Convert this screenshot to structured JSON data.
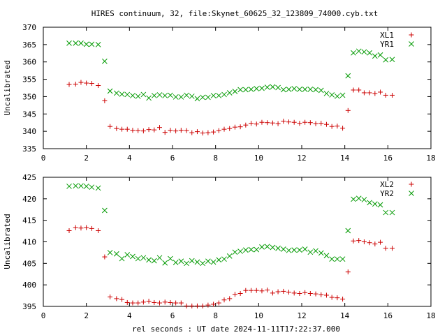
{
  "title": "HIRES continuum, 32, file:Skynet_60625_32_123809_74000.cyb.txt",
  "xlabel": "rel seconds : UT date 2024-11-11T17:22:37.000",
  "colors": {
    "xl": "#cc0000",
    "yr": "#009900",
    "axis": "#000000"
  },
  "chart_data": [
    {
      "type": "scatter",
      "ylabel": "Uncalibrated",
      "xlim": [
        0,
        18
      ],
      "ylim": [
        335,
        370
      ],
      "xticks": [
        0,
        2,
        4,
        6,
        8,
        10,
        12,
        14,
        16,
        18
      ],
      "yticks": [
        335,
        340,
        345,
        350,
        355,
        360,
        365,
        370
      ],
      "legend_position": "top-right",
      "series": [
        {
          "name": "XL1",
          "marker": "plus",
          "color": "#cc0000",
          "x": [
            1.2,
            1.5,
            1.75,
            2.0,
            2.25,
            2.55,
            2.85,
            3.1,
            3.4,
            3.65,
            3.9,
            4.15,
            4.4,
            4.65,
            4.9,
            5.15,
            5.4,
            5.65,
            5.9,
            6.15,
            6.4,
            6.65,
            6.9,
            7.15,
            7.4,
            7.65,
            7.9,
            8.15,
            8.4,
            8.65,
            8.9,
            9.15,
            9.4,
            9.65,
            9.9,
            10.15,
            10.4,
            10.65,
            10.9,
            11.15,
            11.4,
            11.65,
            11.9,
            12.15,
            12.4,
            12.65,
            12.9,
            13.15,
            13.4,
            13.65,
            13.9,
            14.15,
            14.4,
            14.65,
            14.9,
            15.15,
            15.4,
            15.65,
            15.9,
            16.2
          ],
          "y": [
            353.5,
            353.6,
            354.1,
            353.9,
            353.8,
            353.2,
            348.8,
            341.4,
            340.8,
            340.6,
            340.6,
            340.3,
            340.2,
            340.1,
            340.5,
            340.4,
            341.1,
            339.7,
            340.3,
            340.1,
            340.3,
            340.2,
            339.6,
            339.9,
            339.5,
            339.6,
            339.8,
            340.2,
            340.6,
            340.8,
            341.2,
            341.3,
            341.8,
            342.3,
            342.1,
            342.6,
            342.5,
            342.4,
            342.2,
            342.9,
            342.7,
            342.6,
            342.3,
            342.6,
            342.5,
            342.2,
            342.3,
            342.0,
            341.4,
            341.5,
            340.9,
            346.0,
            351.9,
            351.9,
            351.1,
            351.1,
            350.9,
            351.3,
            350.4,
            350.4
          ]
        },
        {
          "name": "YR1",
          "marker": "x",
          "color": "#009900",
          "x": [
            1.2,
            1.5,
            1.75,
            2.0,
            2.25,
            2.55,
            2.85,
            3.1,
            3.4,
            3.65,
            3.9,
            4.15,
            4.4,
            4.65,
            4.9,
            5.15,
            5.4,
            5.65,
            5.9,
            6.15,
            6.4,
            6.65,
            6.9,
            7.15,
            7.4,
            7.65,
            7.9,
            8.15,
            8.4,
            8.65,
            8.9,
            9.15,
            9.4,
            9.65,
            9.9,
            10.15,
            10.4,
            10.65,
            10.9,
            11.15,
            11.4,
            11.65,
            11.9,
            12.15,
            12.4,
            12.65,
            12.9,
            13.15,
            13.4,
            13.65,
            13.9,
            14.15,
            14.4,
            14.65,
            14.9,
            15.15,
            15.4,
            15.65,
            15.9,
            16.2
          ],
          "y": [
            365.4,
            365.4,
            365.4,
            365.1,
            365.1,
            365.0,
            360.2,
            351.6,
            351.0,
            350.7,
            350.6,
            350.3,
            350.1,
            350.6,
            349.6,
            350.3,
            350.5,
            350.3,
            350.4,
            349.9,
            349.9,
            350.4,
            350.1,
            349.4,
            349.8,
            349.8,
            350.3,
            350.3,
            350.6,
            351.1,
            351.5,
            352.0,
            352.0,
            352.1,
            352.3,
            352.4,
            352.7,
            352.8,
            352.6,
            352.0,
            352.1,
            352.3,
            352.1,
            352.1,
            352.1,
            352.0,
            351.8,
            350.9,
            350.5,
            350.1,
            350.4,
            356.0,
            362.6,
            363.1,
            362.9,
            362.6,
            361.7,
            362.0,
            360.6,
            360.7
          ]
        }
      ]
    },
    {
      "type": "scatter",
      "ylabel": "Uncalibrated",
      "xlim": [
        0,
        18
      ],
      "ylim": [
        395,
        425
      ],
      "xticks": [
        0,
        2,
        4,
        6,
        8,
        10,
        12,
        14,
        16,
        18
      ],
      "yticks": [
        395,
        400,
        405,
        410,
        415,
        420,
        425
      ],
      "legend_position": "top-right",
      "series": [
        {
          "name": "XL2",
          "marker": "plus",
          "color": "#cc0000",
          "x": [
            1.2,
            1.5,
            1.75,
            2.0,
            2.25,
            2.55,
            2.85,
            3.1,
            3.4,
            3.65,
            3.9,
            4.15,
            4.4,
            4.65,
            4.9,
            5.15,
            5.4,
            5.65,
            5.9,
            6.15,
            6.4,
            6.65,
            6.9,
            7.15,
            7.4,
            7.65,
            7.9,
            8.15,
            8.4,
            8.65,
            8.9,
            9.15,
            9.4,
            9.65,
            9.9,
            10.15,
            10.4,
            10.65,
            10.9,
            11.15,
            11.4,
            11.65,
            11.9,
            12.15,
            12.4,
            12.65,
            12.9,
            13.15,
            13.4,
            13.65,
            13.9,
            14.15,
            14.4,
            14.65,
            14.9,
            15.15,
            15.4,
            15.65,
            15.9,
            16.2
          ],
          "y": [
            412.6,
            413.3,
            413.2,
            413.3,
            413.1,
            412.6,
            406.5,
            397.2,
            396.8,
            396.6,
            395.9,
            395.8,
            395.8,
            396.0,
            396.2,
            395.9,
            395.8,
            396.0,
            395.9,
            395.8,
            395.8,
            395.1,
            395.1,
            395.1,
            395.1,
            395.3,
            395.5,
            395.8,
            396.5,
            396.8,
            397.8,
            398.0,
            398.7,
            398.7,
            398.7,
            398.6,
            398.8,
            398.1,
            398.4,
            398.5,
            398.3,
            398.1,
            398.0,
            398.2,
            398.0,
            397.9,
            397.7,
            397.6,
            397.1,
            397.0,
            396.7,
            403.0,
            410.2,
            410.3,
            410.0,
            409.8,
            409.5,
            409.9,
            408.5,
            408.5
          ]
        },
        {
          "name": "YR2",
          "marker": "x",
          "color": "#009900",
          "x": [
            1.2,
            1.5,
            1.75,
            2.0,
            2.25,
            2.55,
            2.85,
            3.1,
            3.4,
            3.65,
            3.9,
            4.15,
            4.4,
            4.65,
            4.9,
            5.15,
            5.4,
            5.65,
            5.9,
            6.15,
            6.4,
            6.65,
            6.9,
            7.15,
            7.4,
            7.65,
            7.9,
            8.15,
            8.4,
            8.65,
            8.9,
            9.15,
            9.4,
            9.65,
            9.9,
            10.15,
            10.4,
            10.65,
            10.9,
            11.15,
            11.4,
            11.65,
            11.9,
            12.15,
            12.4,
            12.65,
            12.9,
            13.15,
            13.4,
            13.65,
            13.9,
            14.15,
            14.4,
            14.65,
            14.9,
            15.15,
            15.4,
            15.65,
            15.9,
            16.2
          ],
          "y": [
            422.9,
            423.0,
            423.0,
            422.9,
            422.7,
            422.5,
            417.3,
            407.5,
            407.2,
            406.1,
            407.0,
            406.6,
            406.1,
            406.3,
            405.8,
            405.6,
            406.3,
            405.1,
            406.1,
            405.2,
            405.5,
            405.0,
            405.6,
            405.3,
            405.0,
            405.5,
            405.3,
            405.8,
            406.0,
            406.7,
            407.6,
            407.8,
            408.1,
            408.2,
            408.2,
            408.8,
            408.9,
            408.7,
            408.5,
            408.3,
            408.0,
            408.1,
            408.1,
            408.3,
            407.6,
            407.9,
            407.4,
            406.8,
            406.0,
            406.0,
            406.0,
            412.6,
            419.9,
            420.1,
            419.8,
            419.1,
            418.8,
            418.6,
            416.8,
            416.8
          ]
        }
      ]
    }
  ]
}
